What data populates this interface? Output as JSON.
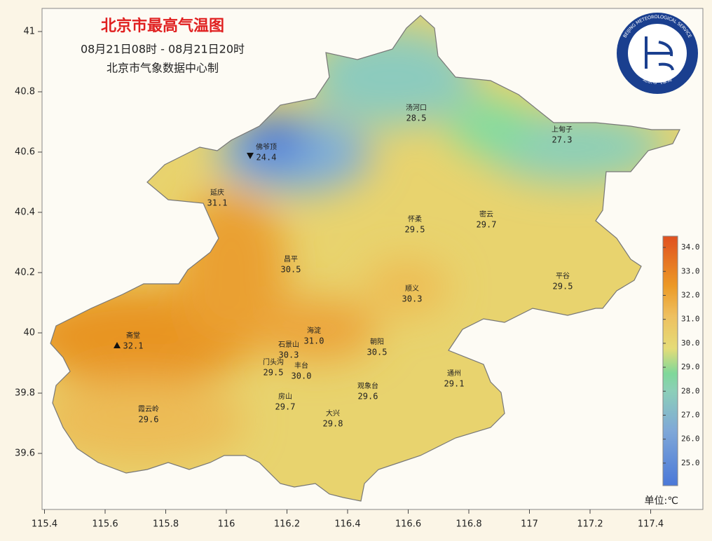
{
  "header": {
    "title": "北京市最高气温图",
    "time_range": "08月21日08时 - 08月21日20时",
    "source": "北京市气象数据中心制"
  },
  "logo": {
    "english": "BEIJING METEOROLOGICAL SERVICE",
    "chinese": "北京市气象局"
  },
  "axes": {
    "xticks": [
      115.4,
      115.6,
      115.8,
      116,
      116.2,
      116.4,
      116.6,
      116.8,
      117,
      117.2,
      117.4
    ],
    "yticks": [
      41,
      40.8,
      40.6,
      40.4,
      40.2,
      40,
      39.8,
      39.6
    ]
  },
  "stations": [
    {
      "name": "佛爷顶",
      "value": 24.4,
      "marker": "min"
    },
    {
      "name": "汤河口",
      "value": 28.5
    },
    {
      "name": "上甸子",
      "value": 27.3
    },
    {
      "name": "延庆",
      "value": 31.1
    },
    {
      "name": "怀柔",
      "value": 29.5
    },
    {
      "name": "密云",
      "value": 29.7
    },
    {
      "name": "昌平",
      "value": 30.5
    },
    {
      "name": "顺义",
      "value": 30.3
    },
    {
      "name": "平谷",
      "value": 29.5
    },
    {
      "name": "斋堂",
      "value": 32.1,
      "marker": "max"
    },
    {
      "name": "海淀",
      "value": 31.0,
      "value_label": "31.0"
    },
    {
      "name": "石景山",
      "value": 30.3
    },
    {
      "name": "朝阳",
      "value": 30.5
    },
    {
      "name": "门头沟",
      "value": 29.5
    },
    {
      "name": "丰台",
      "value": 30.0,
      "value_label": "30.0"
    },
    {
      "name": "通州",
      "value": 29.1
    },
    {
      "name": "观象台",
      "value": 29.6
    },
    {
      "name": "房山",
      "value": 29.7
    },
    {
      "name": "大兴",
      "value": 29.8
    },
    {
      "name": "霞云岭",
      "value": 29.6
    }
  ],
  "colorbar": {
    "unit": "单位:℃",
    "range": [
      24.06,
      34.47
    ],
    "ticks": [
      {
        "value": 34,
        "label": "34.0"
      },
      {
        "value": 33,
        "label": "33.0"
      },
      {
        "value": 32,
        "label": "32.0"
      },
      {
        "value": 31,
        "label": "31.0"
      },
      {
        "value": 30,
        "label": "30.0"
      },
      {
        "value": 29,
        "label": "29.0"
      },
      {
        "value": 28,
        "label": "28.0"
      },
      {
        "value": 27,
        "label": "27.0"
      },
      {
        "value": 26,
        "label": "26.0"
      },
      {
        "value": 25,
        "label": "25.0"
      }
    ]
  }
}
